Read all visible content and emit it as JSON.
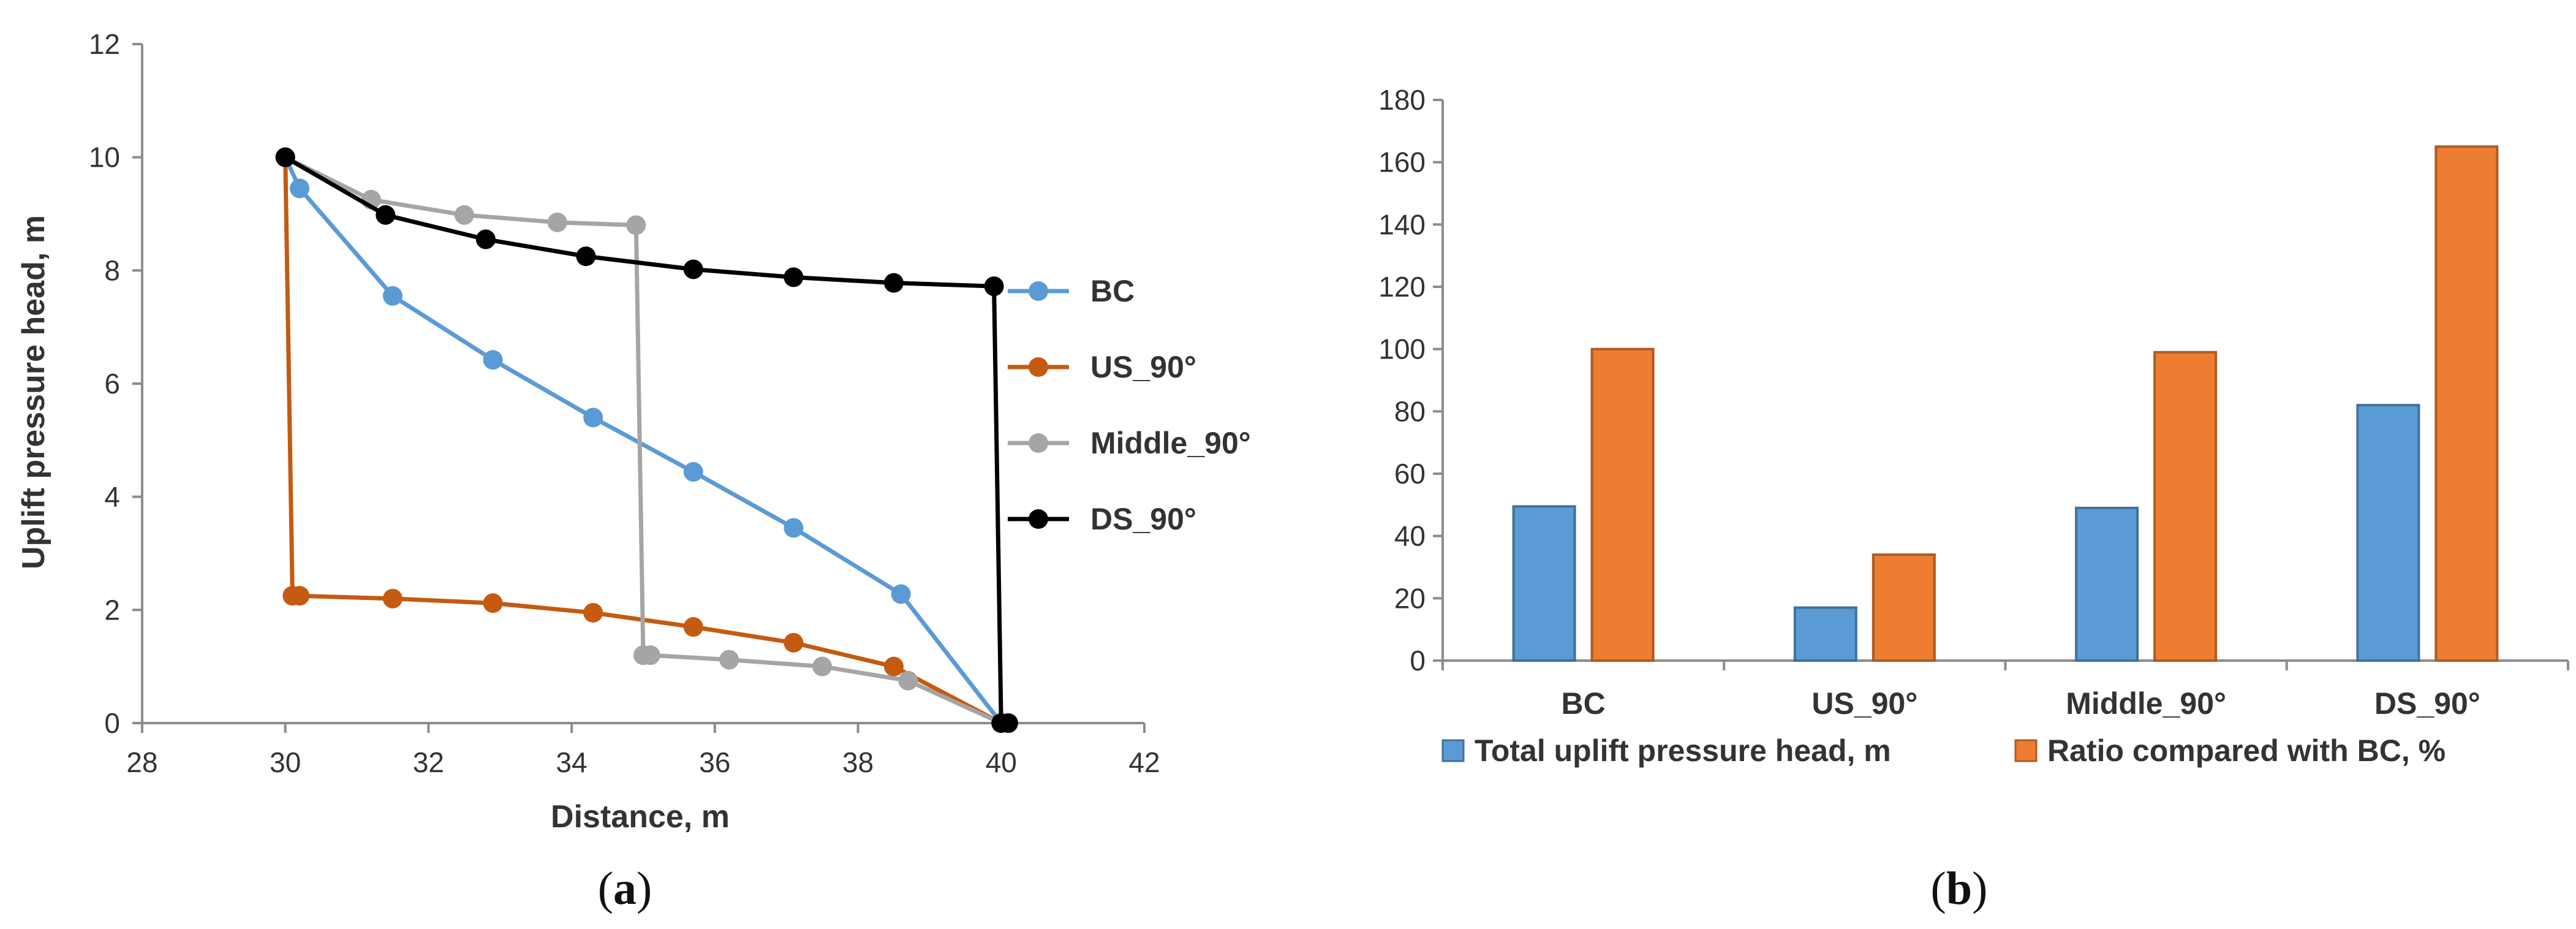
{
  "chart_data": [
    {
      "type": "line",
      "panel_label": "a",
      "xlabel": "Distance, m",
      "ylabel": "Uplift pressure head, m",
      "xlim": [
        28,
        42
      ],
      "ylim": [
        0,
        12
      ],
      "xticks": [
        28,
        30,
        32,
        34,
        36,
        38,
        40,
        42
      ],
      "yticks": [
        0,
        2,
        4,
        6,
        8,
        10,
        12
      ],
      "legend_position": "right",
      "series": [
        {
          "name": "BC",
          "color": "#5B9BD5",
          "points": [
            [
              30,
              10
            ],
            [
              30.2,
              9.45
            ],
            [
              31.5,
              7.55
            ],
            [
              32.9,
              6.42
            ],
            [
              34.3,
              5.4
            ],
            [
              35.7,
              4.44
            ],
            [
              37.1,
              3.45
            ],
            [
              38.6,
              2.28
            ],
            [
              40,
              0
            ]
          ]
        },
        {
          "name": "US_90°",
          "color": "#C55A11",
          "points": [
            [
              30,
              10
            ],
            [
              30.1,
              2.25
            ],
            [
              30.2,
              2.25
            ],
            [
              31.5,
              2.2
            ],
            [
              32.9,
              2.12
            ],
            [
              34.3,
              1.95
            ],
            [
              35.7,
              1.7
            ],
            [
              37.1,
              1.42
            ],
            [
              38.5,
              1.0
            ],
            [
              40,
              0
            ]
          ]
        },
        {
          "name": "Middle_90°",
          "color": "#A5A5A5",
          "points": [
            [
              30,
              10
            ],
            [
              31.2,
              9.25
            ],
            [
              32.5,
              8.98
            ],
            [
              33.8,
              8.85
            ],
            [
              34.9,
              8.8
            ],
            [
              35.0,
              1.2
            ],
            [
              35.1,
              1.2
            ],
            [
              36.2,
              1.12
            ],
            [
              37.5,
              1.0
            ],
            [
              38.7,
              0.75
            ],
            [
              40,
              0
            ]
          ]
        },
        {
          "name": "DS_90°",
          "color": "#000000",
          "points": [
            [
              30,
              10
            ],
            [
              31.4,
              8.98
            ],
            [
              32.8,
              8.55
            ],
            [
              34.2,
              8.25
            ],
            [
              35.7,
              8.02
            ],
            [
              37.1,
              7.88
            ],
            [
              38.5,
              7.78
            ],
            [
              39.9,
              7.72
            ],
            [
              40,
              0
            ],
            [
              40.1,
              0
            ]
          ]
        }
      ]
    },
    {
      "type": "bar",
      "panel_label": "b",
      "categories": [
        "BC",
        "US_90°",
        "Middle_90°",
        "DS_90°"
      ],
      "ylim": [
        0,
        180
      ],
      "yticks": [
        0,
        20,
        40,
        60,
        80,
        100,
        120,
        140,
        160,
        180
      ],
      "legend_position": "bottom",
      "series": [
        {
          "name": "Total uplift pressure head, m",
          "color": "#5B9BD5",
          "stroke": "#41719C",
          "values": [
            49.5,
            17,
            49,
            82
          ]
        },
        {
          "name": "Ratio compared with BC, %",
          "color": "#ED7D31",
          "stroke": "#AE5A21",
          "values": [
            100,
            34,
            99,
            165
          ]
        }
      ]
    }
  ],
  "captions": {
    "a": {
      "open": "(",
      "letter": "a",
      "close": ")"
    },
    "b": {
      "open": "(",
      "letter": "b",
      "close": ")"
    }
  }
}
